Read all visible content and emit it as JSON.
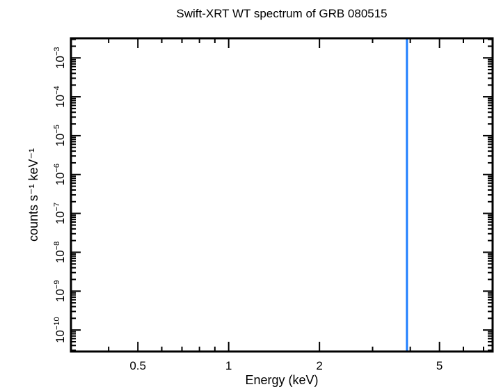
{
  "chart_data": {
    "type": "line",
    "title": "Swift-XRT WT spectrum of GRB 080515",
    "xlabel": "Energy (keV)",
    "ylabel": "counts s⁻¹ keV⁻¹",
    "xscale": "log",
    "yscale": "log",
    "xlim": [
      0.3,
      7.5
    ],
    "ylim": [
      2.8e-11,
      0.0032
    ],
    "x_ticks": [
      {
        "value": 0.5,
        "label": "0.5"
      },
      {
        "value": 1,
        "label": "1"
      },
      {
        "value": 2,
        "label": "2"
      },
      {
        "value": 5,
        "label": "5"
      }
    ],
    "x_minor_ticks": [
      0.3,
      0.4,
      0.6,
      0.7,
      0.8,
      0.9,
      3,
      4,
      6,
      7
    ],
    "y_ticks": [
      {
        "value": 0.001,
        "base": "10",
        "exp": "−3"
      },
      {
        "value": 0.0001,
        "base": "10",
        "exp": "−4"
      },
      {
        "value": 1e-05,
        "base": "10",
        "exp": "−5"
      },
      {
        "value": 1e-06,
        "base": "10",
        "exp": "−6"
      },
      {
        "value": 1e-07,
        "base": "10",
        "exp": "−7"
      },
      {
        "value": 1e-08,
        "base": "10",
        "exp": "−8"
      },
      {
        "value": 1e-09,
        "base": "10",
        "exp": "−9"
      },
      {
        "value": 1e-10,
        "base": "10",
        "exp": "−10"
      }
    ],
    "grid": false,
    "series": [
      {
        "x": [
          3.9,
          3.9
        ],
        "y": [
          2.8e-11,
          0.0032
        ],
        "color": "#1f7fff"
      }
    ]
  }
}
